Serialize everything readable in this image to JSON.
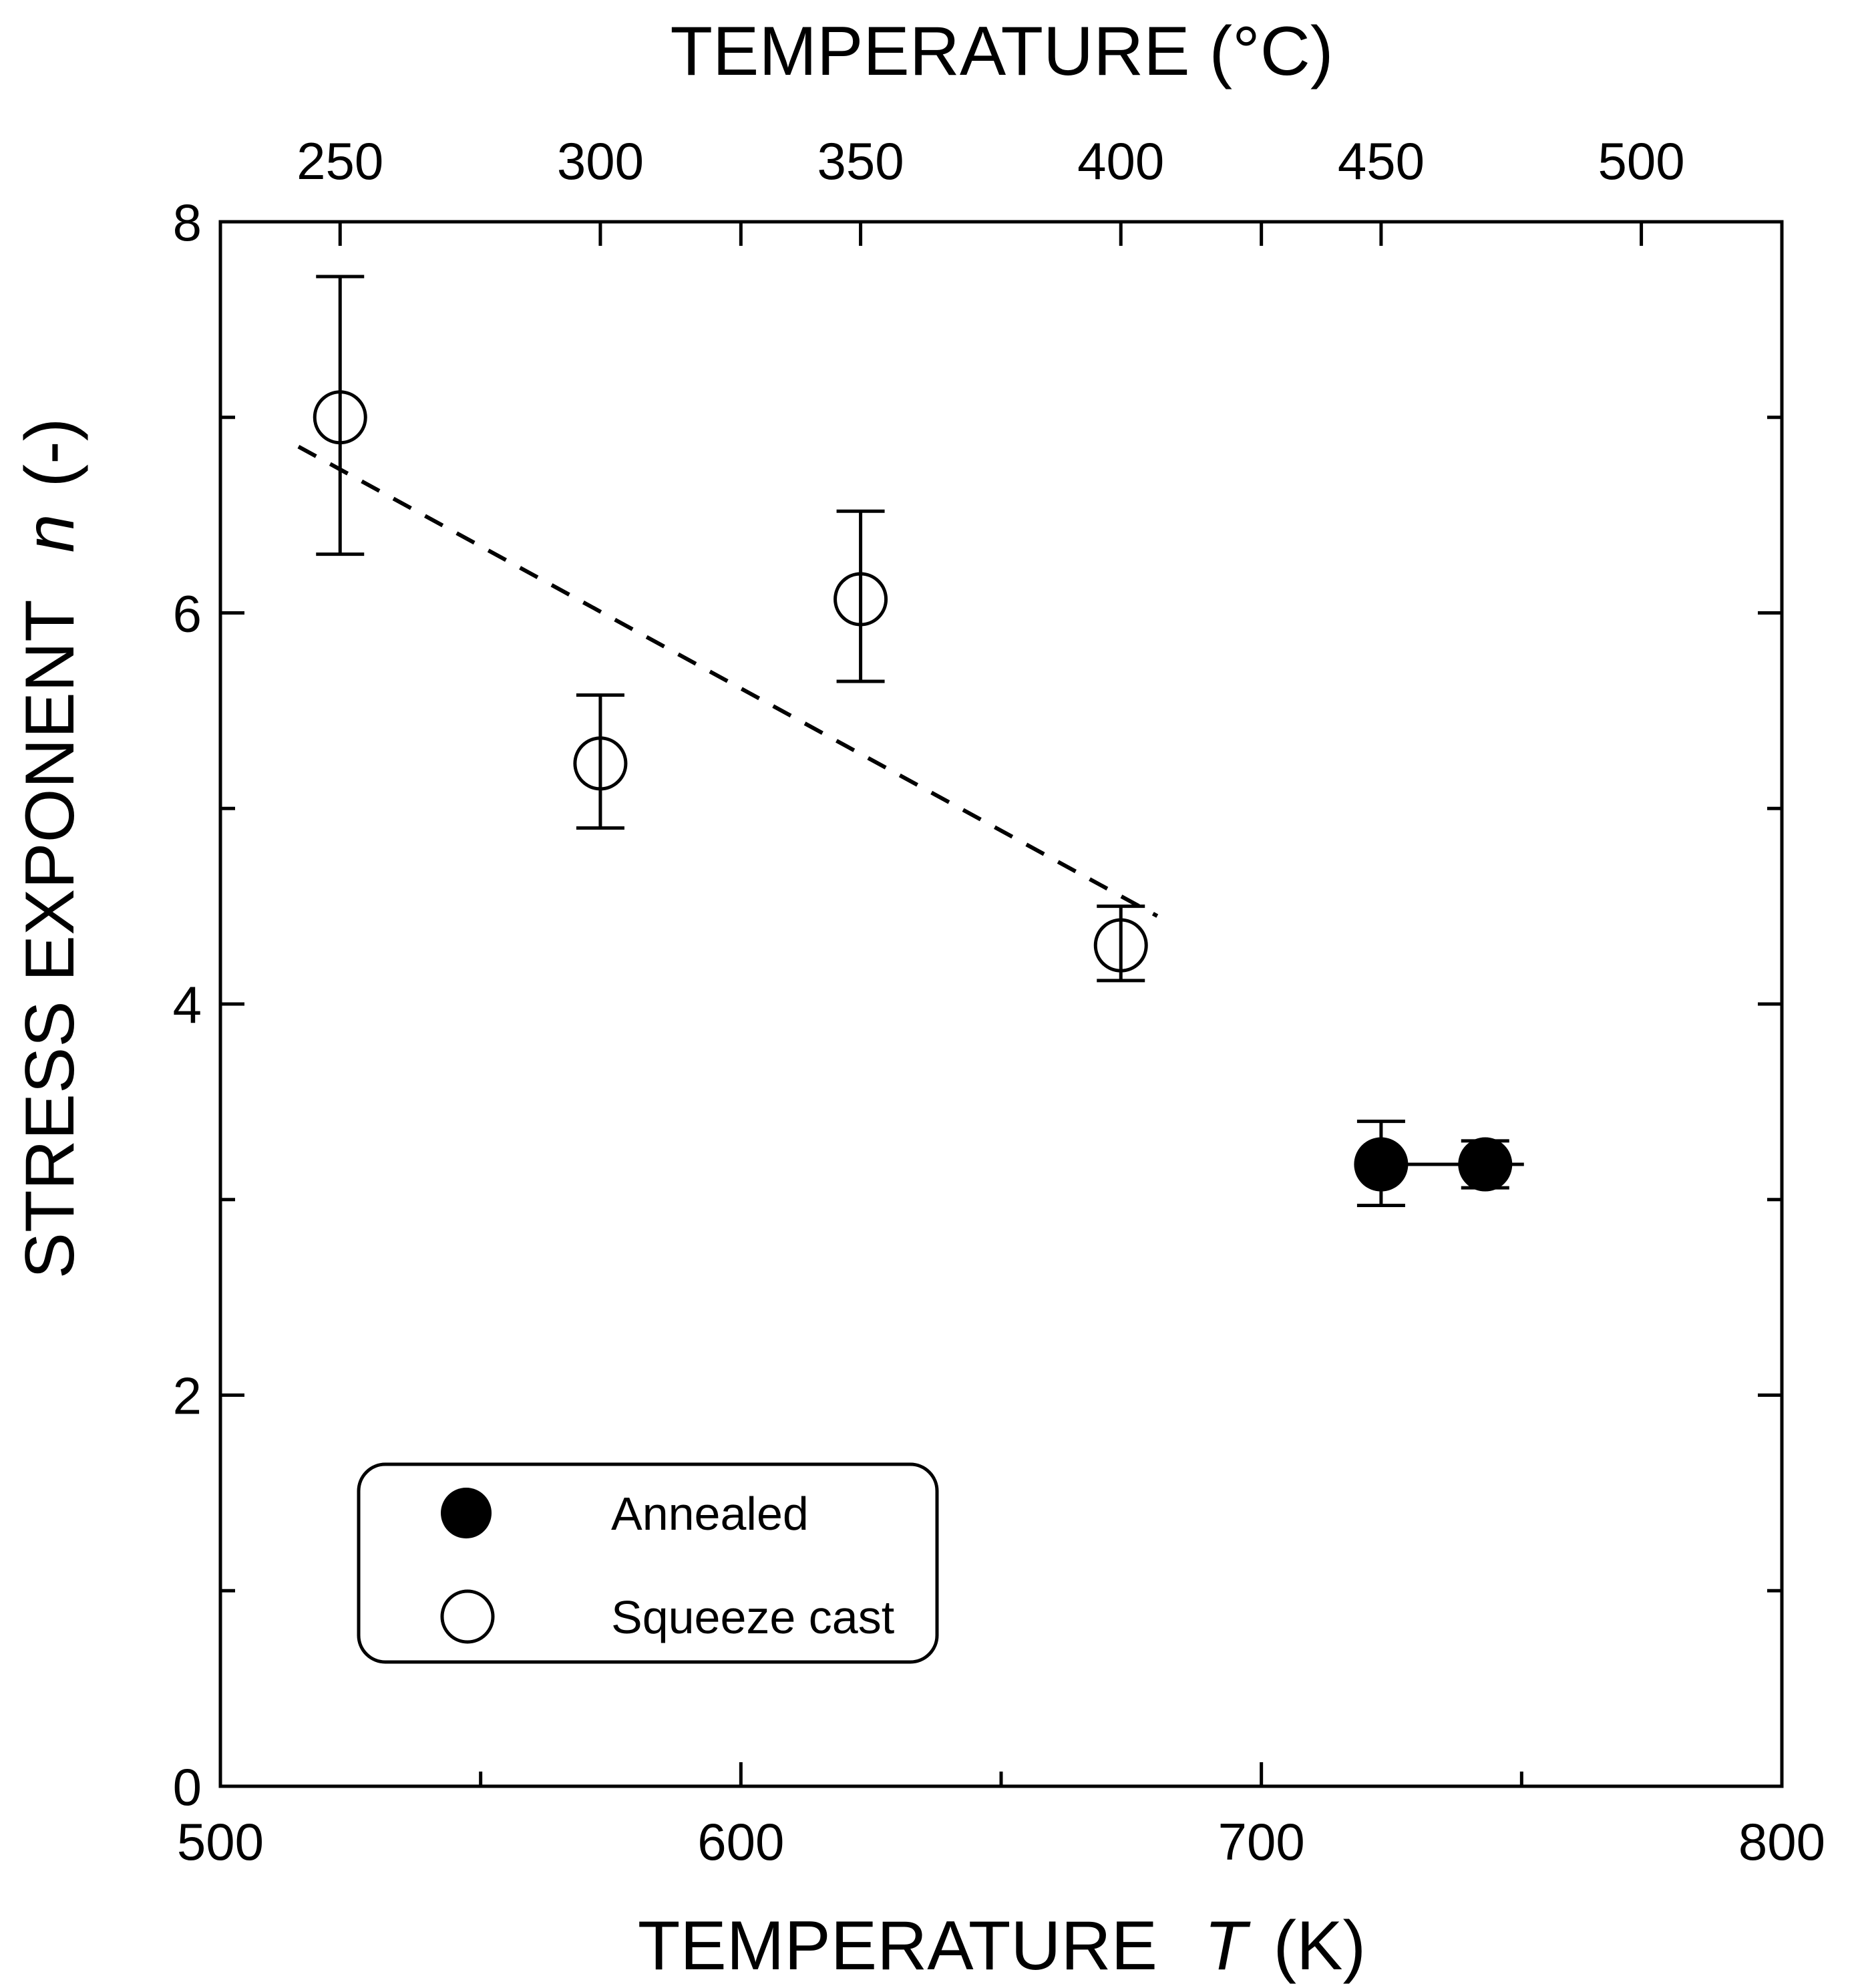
{
  "chart_data": {
    "type": "scatter",
    "title": "",
    "xlabel": "TEMPERATURE",
    "xlabel_symbol": "T",
    "xlabel_unit": "(K)",
    "x2label": "TEMPERATURE (°C)",
    "ylabel": "STRESS EXPONENT",
    "ylabel_symbol": "n",
    "ylabel_unit": "(-)",
    "xlim": [
      500,
      800
    ],
    "ylim": [
      0,
      8
    ],
    "x_major_ticks": [
      500,
      600,
      700,
      800
    ],
    "x_major_labels": [
      "500",
      "600",
      "700",
      "800"
    ],
    "x_minor_ticks": [
      550,
      650,
      750
    ],
    "y_major_ticks": [
      0,
      2,
      4,
      6,
      8
    ],
    "y_major_labels": [
      "0",
      "2",
      "4",
      "6",
      "8"
    ],
    "y_minor_ticks": [
      1,
      3,
      5,
      7
    ],
    "x2_ticks_celsius": [
      250,
      300,
      350,
      400,
      450,
      500
    ],
    "x2_labels": [
      "250",
      "300",
      "350",
      "400",
      "450",
      "500"
    ],
    "celsius_offset": 273,
    "grid": false,
    "legend_position": "bottom-left",
    "series": [
      {
        "name": "Annealed",
        "marker": "filled-circle",
        "points": [
          {
            "x": 723,
            "y": 3.18,
            "ylow": 2.97,
            "yhigh": 3.4
          },
          {
            "x": 743,
            "y": 3.18,
            "ylow": 3.06,
            "yhigh": 3.3
          }
        ],
        "connect": true
      },
      {
        "name": "Squeeze cast",
        "marker": "open-circle",
        "points": [
          {
            "x": 523,
            "y": 7.0,
            "ylow": 6.3,
            "yhigh": 7.72
          },
          {
            "x": 573,
            "y": 5.23,
            "ylow": 4.9,
            "yhigh": 5.58
          },
          {
            "x": 623,
            "y": 6.07,
            "ylow": 5.65,
            "yhigh": 6.52
          },
          {
            "x": 673,
            "y": 4.3,
            "ylow": 4.12,
            "yhigh": 4.5
          }
        ]
      }
    ],
    "trend_line": {
      "style": "dashed",
      "x": [
        515,
        680
      ],
      "y": [
        6.85,
        4.45
      ]
    }
  },
  "colors": {
    "axis": "#000000",
    "background": "#ffffff",
    "marker_fill": "#000000",
    "marker_open": "#ffffff"
  }
}
